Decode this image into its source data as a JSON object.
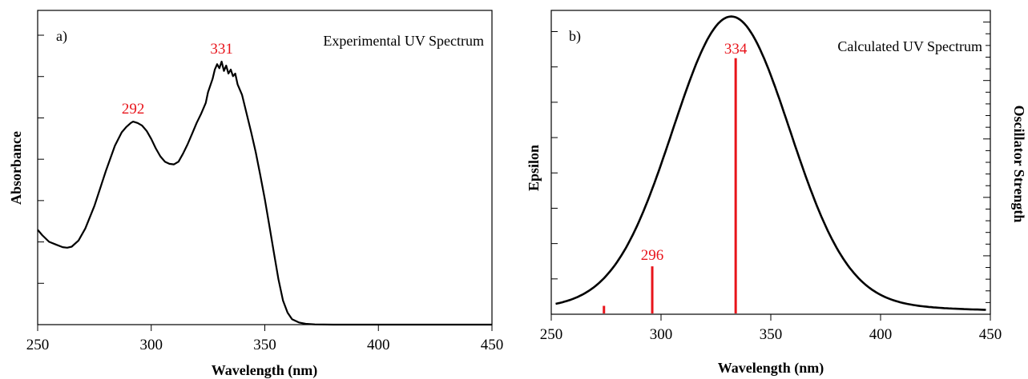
{
  "colors": {
    "curve": "#000000",
    "annotation": "#e8141b",
    "frame": "#000000"
  },
  "chart_data": [
    {
      "type": "line",
      "panel_label": "a)",
      "title": "Experimental UV Spectrum",
      "xlabel": "Wavelength (nm)",
      "ylabel": "Absorbance",
      "xlim": [
        250,
        450
      ],
      "ylim": [
        0,
        1
      ],
      "x_ticks": [
        250,
        300,
        350,
        400,
        450
      ],
      "grid": false,
      "series": [
        {
          "x": [
            250,
            252,
            255,
            258,
            261,
            263,
            265,
            268,
            271,
            275,
            280,
            284,
            287,
            289,
            291,
            292,
            294,
            296,
            298,
            300,
            302,
            304,
            306,
            308,
            310,
            312,
            314,
            316,
            318,
            320,
            322,
            324,
            325,
            327,
            328,
            329,
            330,
            331,
            332,
            333,
            334,
            335,
            336,
            337,
            338,
            340,
            342,
            344,
            346,
            348,
            350,
            352,
            354,
            356,
            358,
            360,
            362,
            365,
            368,
            372,
            380,
            390,
            400,
            410,
            420,
            430,
            440,
            450
          ],
          "y": [
            0.355,
            0.335,
            0.31,
            0.3,
            0.29,
            0.288,
            0.292,
            0.315,
            0.36,
            0.445,
            0.575,
            0.67,
            0.72,
            0.74,
            0.755,
            0.76,
            0.755,
            0.745,
            0.725,
            0.695,
            0.66,
            0.63,
            0.61,
            0.602,
            0.6,
            0.61,
            0.64,
            0.675,
            0.715,
            0.755,
            0.79,
            0.83,
            0.87,
            0.92,
            0.955,
            0.975,
            0.96,
            0.985,
            0.95,
            0.97,
            0.94,
            0.955,
            0.93,
            0.94,
            0.9,
            0.86,
            0.79,
            0.72,
            0.645,
            0.56,
            0.47,
            0.37,
            0.27,
            0.17,
            0.09,
            0.045,
            0.02,
            0.008,
            0.003,
            0.001,
            0.0,
            0.0,
            0.0,
            0.0,
            0.0,
            0.0,
            0.0,
            0.0
          ]
        }
      ],
      "peaks": [
        {
          "x": 292,
          "label": "292"
        },
        {
          "x": 331,
          "label": "331"
        }
      ]
    },
    {
      "type": "line",
      "panel_label": "b)",
      "title": "Calculated UV Spectrum",
      "xlabel": "Wavelength (nm)",
      "ylabel": "Epsilon",
      "y2label": "Oscillator Strength",
      "xlim": [
        250,
        450
      ],
      "ylim": [
        0,
        1
      ],
      "x_ticks": [
        250,
        300,
        350,
        400,
        450
      ],
      "grid": false,
      "curve_center": 332,
      "curve_sigma": 26.5,
      "curve_peak": 0.98,
      "series": [
        {
          "x": [
            252,
            260,
            270,
            280,
            290,
            300,
            305,
            310,
            315,
            320,
            325,
            330,
            332,
            335,
            340,
            345,
            350,
            355,
            360,
            370,
            380,
            390,
            400,
            410,
            420,
            430,
            440,
            448
          ],
          "y": [
            0.025,
            0.04,
            0.078,
            0.143,
            0.25,
            0.41,
            0.5,
            0.6,
            0.7,
            0.8,
            0.9,
            0.975,
            0.98,
            0.975,
            0.93,
            0.84,
            0.73,
            0.62,
            0.5,
            0.3,
            0.17,
            0.09,
            0.055,
            0.035,
            0.025,
            0.02,
            0.015,
            0.01
          ]
        }
      ],
      "sticks": [
        {
          "x": 274,
          "f": 0.025,
          "label": ""
        },
        {
          "x": 296,
          "f": 0.155,
          "label": "296"
        },
        {
          "x": 334,
          "f": 0.84,
          "label": "334"
        }
      ]
    }
  ]
}
